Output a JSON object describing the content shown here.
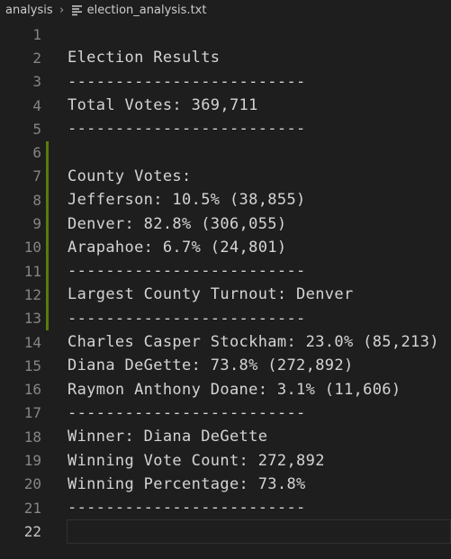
{
  "breadcrumb": {
    "folder": "analysis",
    "separator": "›",
    "file": "election_analysis.txt"
  },
  "editor": {
    "active_line": 22,
    "modified_lines_from": 6,
    "modified_lines_to": 13,
    "lines": [
      {
        "number": "1",
        "text": ""
      },
      {
        "number": "2",
        "text": "Election Results"
      },
      {
        "number": "3",
        "text": "-------------------------"
      },
      {
        "number": "4",
        "text": "Total Votes: 369,711"
      },
      {
        "number": "5",
        "text": "-------------------------"
      },
      {
        "number": "6",
        "text": ""
      },
      {
        "number": "7",
        "text": "County Votes:"
      },
      {
        "number": "8",
        "text": "Jefferson: 10.5% (38,855)"
      },
      {
        "number": "9",
        "text": "Denver: 82.8% (306,055)"
      },
      {
        "number": "10",
        "text": "Arapahoe: 6.7% (24,801)"
      },
      {
        "number": "11",
        "text": "-------------------------"
      },
      {
        "number": "12",
        "text": "Largest County Turnout: Denver"
      },
      {
        "number": "13",
        "text": "-------------------------"
      },
      {
        "number": "14",
        "text": "Charles Casper Stockham: 23.0% (85,213)"
      },
      {
        "number": "15",
        "text": "Diana DeGette: 73.8% (272,892)"
      },
      {
        "number": "16",
        "text": "Raymon Anthony Doane: 3.1% (11,606)"
      },
      {
        "number": "17",
        "text": "-------------------------"
      },
      {
        "number": "18",
        "text": "Winner: Diana DeGette"
      },
      {
        "number": "19",
        "text": "Winning Vote Count: 272,892"
      },
      {
        "number": "20",
        "text": "Winning Percentage: 73.8%"
      },
      {
        "number": "21",
        "text": "-------------------------"
      },
      {
        "number": "22",
        "text": ""
      }
    ]
  }
}
